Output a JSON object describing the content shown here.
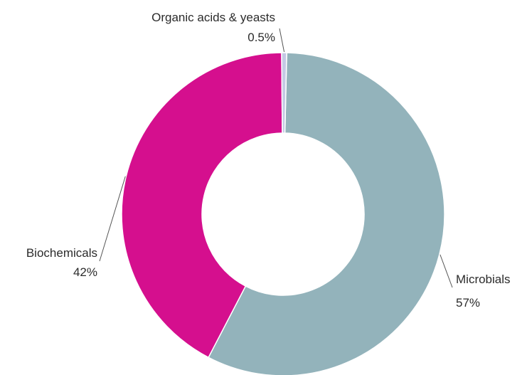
{
  "chart_data": {
    "type": "pie",
    "categories": [
      "Microbials",
      "Biochemicals",
      "Organic acids & yeasts"
    ],
    "values": [
      57,
      42,
      0.5
    ],
    "value_labels": [
      "57%",
      "42%",
      "0.5%"
    ],
    "colors": [
      "#93b3bb",
      "#d50f8e",
      "#c5c9e5"
    ],
    "title": "",
    "legend": "none"
  }
}
